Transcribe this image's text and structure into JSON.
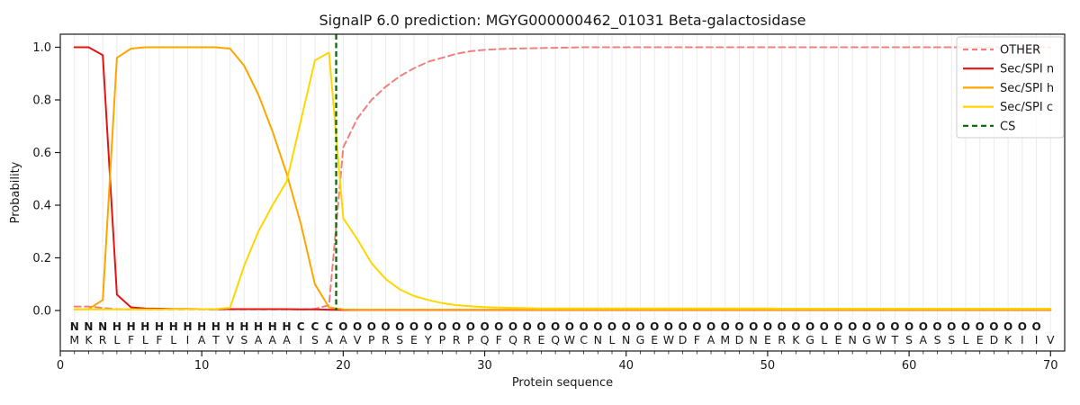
{
  "figure": {
    "title": "SignalP 6.0 prediction: MGYG000000462_01031 Beta-galactosidase",
    "xlabel": "Protein sequence",
    "ylabel": "Probability"
  },
  "legend": {
    "position": "upper right",
    "items": [
      {
        "label": "OTHER",
        "color": "#f08080",
        "dash": true
      },
      {
        "label": "Sec/SPI n",
        "color": "#e41414",
        "dash": false
      },
      {
        "label": "Sec/SPI h",
        "color": "#ffa500",
        "dash": false
      },
      {
        "label": "Sec/SPI c",
        "color": "#ffd700",
        "dash": false
      },
      {
        "label": "CS",
        "color": "#006400",
        "dash": true
      }
    ]
  },
  "chart_data": {
    "type": "line",
    "title": "SignalP 6.0 prediction: MGYG000000462_01031 Beta-galactosidase",
    "xlabel": "Protein sequence",
    "ylabel": "Probability",
    "xlim": [
      0,
      71
    ],
    "ylim_plotted": [
      0.0,
      1.05
    ],
    "grid": "vertical light gridline at every residue position",
    "legend_position": "upper right",
    "x_ticks": [
      {
        "v": 0,
        "label": "0"
      },
      {
        "v": 10,
        "label": "10"
      },
      {
        "v": 20,
        "label": "20"
      },
      {
        "v": 30,
        "label": "30"
      },
      {
        "v": 40,
        "label": "40"
      },
      {
        "v": 50,
        "label": "50"
      },
      {
        "v": 60,
        "label": "60"
      },
      {
        "v": 70,
        "label": "70"
      }
    ],
    "y_ticks": [
      {
        "v": 0.0,
        "label": "0.0"
      },
      {
        "v": 0.2,
        "label": "0.2"
      },
      {
        "v": 0.4,
        "label": "0.4"
      },
      {
        "v": 0.6,
        "label": "0.6"
      },
      {
        "v": 0.8,
        "label": "0.8"
      },
      {
        "v": 1.0,
        "label": "1.0"
      }
    ],
    "x": [
      1,
      2,
      3,
      4,
      5,
      6,
      7,
      8,
      9,
      10,
      11,
      12,
      13,
      14,
      15,
      16,
      17,
      18,
      19,
      20,
      21,
      22,
      23,
      24,
      25,
      26,
      27,
      28,
      29,
      30,
      31,
      32,
      33,
      34,
      35,
      36,
      37,
      38,
      39,
      40,
      41,
      42,
      43,
      44,
      45,
      46,
      47,
      48,
      49,
      50,
      51,
      52,
      53,
      54,
      55,
      56,
      57,
      58,
      59,
      60,
      61,
      62,
      63,
      64,
      65,
      66,
      67,
      68,
      69,
      70
    ],
    "series": [
      {
        "id": "other",
        "name": "OTHER",
        "color": "#f08080",
        "dash": true,
        "values": [
          0.015,
          0.015,
          0.01,
          0.005,
          0.004,
          0.004,
          0.004,
          0.004,
          0.004,
          0.004,
          0.004,
          0.004,
          0.004,
          0.004,
          0.004,
          0.004,
          0.004,
          0.006,
          0.02,
          0.62,
          0.73,
          0.8,
          0.85,
          0.89,
          0.92,
          0.945,
          0.96,
          0.975,
          0.985,
          0.99,
          0.993,
          0.995,
          0.996,
          0.997,
          0.998,
          0.999,
          1.0,
          1.0,
          1.0,
          1.0,
          1.0,
          1.0,
          1.0,
          1.0,
          1.0,
          1.0,
          1.0,
          1.0,
          1.0,
          1.0,
          1.0,
          1.0,
          1.0,
          1.0,
          1.0,
          1.0,
          1.0,
          1.0,
          1.0,
          1.0,
          1.0,
          1.0,
          1.0,
          1.0,
          1.0,
          1.0,
          1.0,
          1.0,
          1.0,
          1.0
        ]
      },
      {
        "id": "n",
        "name": "Sec/SPI n",
        "color": "#e41414",
        "dash": false,
        "values": [
          1.0,
          1.0,
          0.97,
          0.06,
          0.012,
          0.008,
          0.007,
          0.006,
          0.006,
          0.005,
          0.005,
          0.005,
          0.005,
          0.005,
          0.005,
          0.005,
          0.004,
          0.004,
          0.003,
          0.002,
          0.002,
          0.002,
          0.002,
          0.002,
          0.002,
          0.002,
          0.002,
          0.002,
          0.002,
          0.002,
          0.002,
          0.002,
          0.002,
          0.002,
          0.002,
          0.002,
          0.002,
          0.002,
          0.002,
          0.002,
          0.002,
          0.002,
          0.002,
          0.002,
          0.002,
          0.002,
          0.002,
          0.002,
          0.002,
          0.002,
          0.002,
          0.002,
          0.002,
          0.002,
          0.002,
          0.002,
          0.002,
          0.002,
          0.002,
          0.002,
          0.002,
          0.002,
          0.002,
          0.002,
          0.002,
          0.002,
          0.002,
          0.002,
          0.002,
          0.002
        ]
      },
      {
        "id": "h",
        "name": "Sec/SPI h",
        "color": "#ffa500",
        "dash": false,
        "values": [
          0.004,
          0.005,
          0.04,
          0.96,
          0.995,
          1.0,
          1.0,
          1.0,
          1.0,
          1.0,
          1.0,
          0.995,
          0.93,
          0.82,
          0.68,
          0.52,
          0.33,
          0.1,
          0.012,
          0.004,
          0.003,
          0.003,
          0.003,
          0.003,
          0.003,
          0.003,
          0.003,
          0.003,
          0.003,
          0.003,
          0.003,
          0.003,
          0.003,
          0.003,
          0.003,
          0.003,
          0.003,
          0.003,
          0.003,
          0.003,
          0.003,
          0.003,
          0.003,
          0.003,
          0.003,
          0.003,
          0.003,
          0.003,
          0.003,
          0.003,
          0.003,
          0.003,
          0.003,
          0.003,
          0.003,
          0.003,
          0.003,
          0.003,
          0.003,
          0.003,
          0.003,
          0.003,
          0.003,
          0.003,
          0.003,
          0.003,
          0.003,
          0.003,
          0.003,
          0.003
        ]
      },
      {
        "id": "c",
        "name": "Sec/SPI c",
        "color": "#ffd700",
        "dash": false,
        "values": [
          0.004,
          0.004,
          0.004,
          0.004,
          0.004,
          0.004,
          0.004,
          0.005,
          0.005,
          0.005,
          0.006,
          0.01,
          0.17,
          0.3,
          0.4,
          0.49,
          0.72,
          0.95,
          0.98,
          0.35,
          0.27,
          0.18,
          0.12,
          0.08,
          0.055,
          0.04,
          0.028,
          0.02,
          0.016,
          0.013,
          0.011,
          0.01,
          0.009,
          0.008,
          0.008,
          0.008,
          0.008,
          0.008,
          0.008,
          0.008,
          0.008,
          0.008,
          0.008,
          0.008,
          0.008,
          0.008,
          0.008,
          0.008,
          0.008,
          0.008,
          0.007,
          0.007,
          0.007,
          0.007,
          0.007,
          0.007,
          0.007,
          0.007,
          0.007,
          0.007,
          0.007,
          0.007,
          0.007,
          0.007,
          0.007,
          0.007,
          0.007,
          0.007,
          0.007,
          0.007
        ]
      }
    ],
    "cs_marker": {
      "label": "CS",
      "position": 19.5,
      "color": "#006400",
      "dash": true
    }
  },
  "sequence": {
    "residues": "MKRLFLFLIATVSAAAISAAVPRSEYPRPQFQREQWCNLNGEWDFAMDNERKGLENGWTSASSLEDKIIV",
    "regions": "NNNHHHHHHHHHHHHHCCCOOOOOOOOOOOOOOOOOOOOOOOOOOOOOOOOOOOOOOOOOOOOOOOOOO",
    "region_colors": {
      "N": "#e41414",
      "H": "#ffa500",
      "C": "#ffd700",
      "O": "#909090"
    }
  },
  "style": {
    "background": "#ffffff",
    "grid_color": "#ececec",
    "spine_color": "#1a1a1a",
    "tick_color": "#1a1a1a",
    "sequence_letter_color": "#303030",
    "legend_border_color": "#cccccc",
    "legend_background": "rgba(255,255,255,0.85)"
  }
}
